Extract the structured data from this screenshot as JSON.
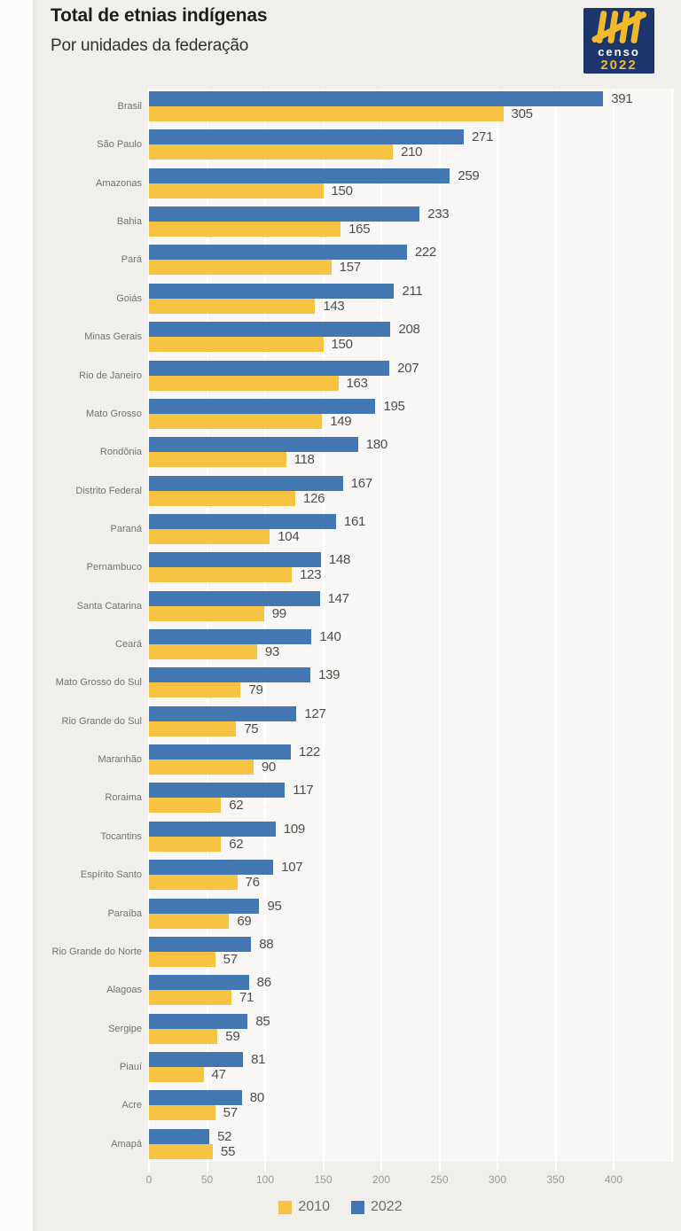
{
  "page": {
    "title": "Total de etnias indígenas",
    "subtitle": "Por unidades da federação"
  },
  "logo": {
    "icon": "censo-2022-tally-icon",
    "line1": "censo",
    "line2": "2022",
    "bg_color": "#1a366b",
    "accent_color": "#f2b92d"
  },
  "colors": {
    "page_background": "#f0efec",
    "plot_background": "#f8f7f5",
    "gridline": "#ffffff",
    "series_2010": "#f6c343",
    "series_2022": "#4377b1",
    "value_label": "#4d4d4b",
    "category_label": "#73726e",
    "tick_label": "#9b9a94"
  },
  "chart_data": {
    "type": "bar",
    "orientation": "horizontal",
    "title": "Total de etnias indígenas",
    "subtitle": "Por unidades da federação",
    "categories": [
      "Brasil",
      "São Paulo",
      "Amazonas",
      "Bahia",
      "Pará",
      "Goiás",
      "Minas Gerais",
      "Rio de Janeiro",
      "Mato Grosso",
      "Rondônia",
      "Distrito Federal",
      "Paraná",
      "Pernambuco",
      "Santa Catarina",
      "Ceará",
      "Mato Grosso do Sul",
      "Rio Grande do Sul",
      "Maranhão",
      "Roraima",
      "Tocantins",
      "Espírito Santo",
      "Paraíba",
      "Rio Grande do Norte",
      "Alagoas",
      "Sergipe",
      "Piauí",
      "Acre",
      "Amapá"
    ],
    "series": [
      {
        "name": "2010",
        "color": "#f6c343",
        "values": [
          305,
          210,
          150,
          165,
          157,
          143,
          150,
          163,
          149,
          118,
          126,
          104,
          123,
          99,
          93,
          79,
          75,
          90,
          62,
          62,
          76,
          69,
          57,
          71,
          59,
          47,
          57,
          55
        ]
      },
      {
        "name": "2022",
        "color": "#4377b1",
        "values": [
          391,
          271,
          259,
          233,
          222,
          211,
          208,
          207,
          195,
          180,
          167,
          161,
          148,
          147,
          140,
          139,
          127,
          122,
          117,
          109,
          107,
          95,
          88,
          86,
          85,
          81,
          80,
          52
        ]
      }
    ],
    "bar_order_top_to_bottom": [
      "2022",
      "2010"
    ],
    "value_labels": true,
    "xlim": [
      0,
      400
    ],
    "xticks": [
      0,
      50,
      100,
      150,
      200,
      250,
      300,
      350,
      400
    ],
    "grid": true,
    "legend_position": "bottom",
    "legend": [
      "2010",
      "2022"
    ]
  }
}
